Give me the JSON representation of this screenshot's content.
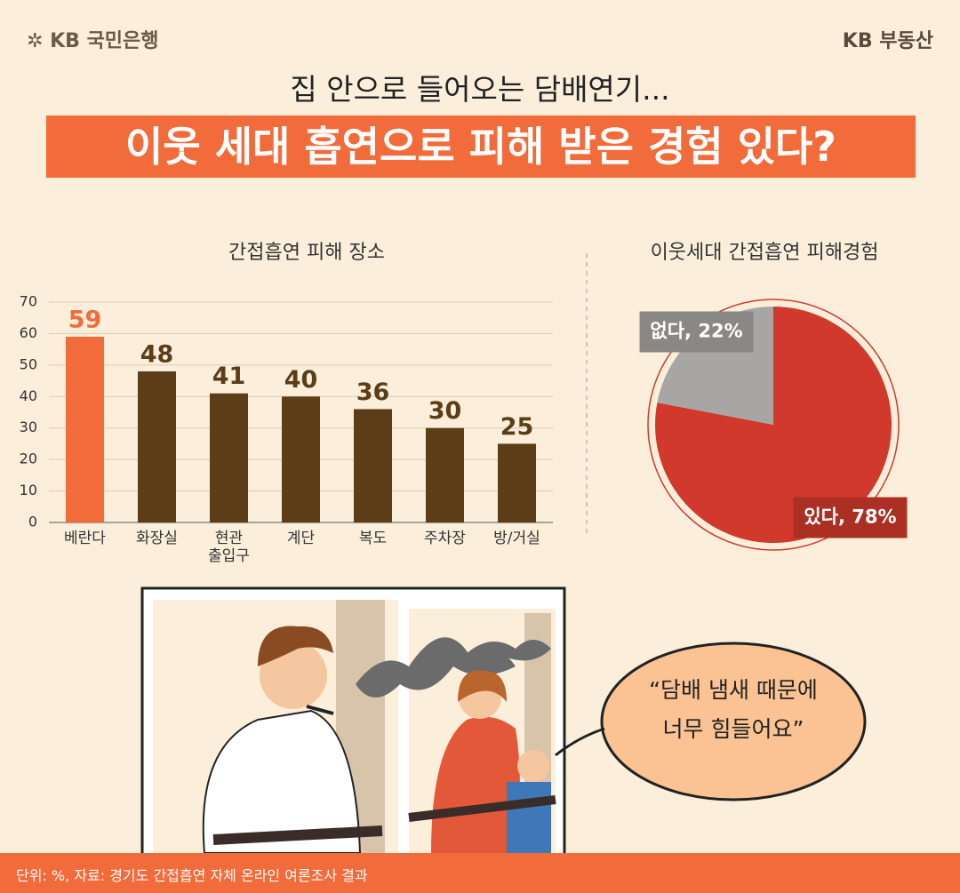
{
  "header": {
    "logo_left": "✲ KB 국민은행",
    "logo_right": "KB 부동산",
    "subtitle": "집 안으로 들어오는 담배연기...",
    "title": "이웃 세대 흡연으로 피해 받은 경험 있다?"
  },
  "chart_data": [
    {
      "type": "bar",
      "title": "간접흡연 피해 장소",
      "categories": [
        "베란다",
        "화장실",
        "현관\n출입구",
        "계단",
        "복도",
        "주차장",
        "방/거실"
      ],
      "values": [
        59,
        48,
        41,
        40,
        36,
        30,
        25
      ],
      "colors": [
        "#f26b3a",
        "#5c3d17",
        "#5c3d17",
        "#5c3d17",
        "#5c3d17",
        "#5c3d17",
        "#5c3d17"
      ],
      "ylim": [
        0,
        70
      ],
      "yticks": [
        0,
        10,
        20,
        30,
        40,
        50,
        60,
        70
      ],
      "grid": true
    },
    {
      "type": "pie",
      "title": "이웃세대 간접흡연 피해경험",
      "values": [
        22,
        78
      ],
      "value_labels": [
        "없다, 22%",
        "있다, 78%"
      ],
      "colors": [
        "#a8a6a4",
        "#d0392b"
      ]
    }
  ],
  "speech": "“담배 냄새 때문에\n너무 힘들어요”",
  "footer": "단위: %, 자료: 경기도 간접흡연 자체 온라인 여론조사 결과"
}
